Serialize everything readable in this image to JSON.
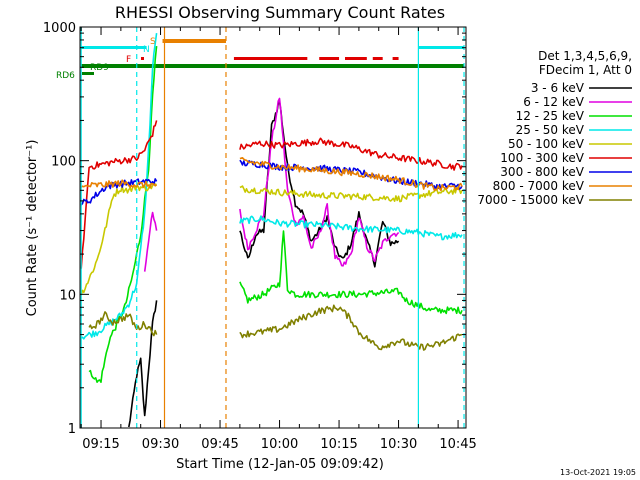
{
  "chart_data": {
    "type": "line",
    "title": "RHESSI Observing Summary Count Rates",
    "xlabel": "Start Time (12-Jan-05 09:09:42)",
    "ylabel": "Count Rate (s⁻¹ detector⁻¹)",
    "ylog": true,
    "ylim": [
      1,
      1000
    ],
    "xlim_minutes": [
      9.7,
      107
    ],
    "x_ticks": [
      {
        "t": 15,
        "label": "09:15"
      },
      {
        "t": 30,
        "label": "09:30"
      },
      {
        "t": 45,
        "label": "09:45"
      },
      {
        "t": 60,
        "label": "10:00"
      },
      {
        "t": 75,
        "label": "10:15"
      },
      {
        "t": 90,
        "label": "10:30"
      },
      {
        "t": 105,
        "label": "10:45"
      }
    ],
    "y_ticks": [
      {
        "v": 1,
        "label": "1"
      },
      {
        "v": 10,
        "label": "10"
      },
      {
        "v": 100,
        "label": "100"
      },
      {
        "v": 1000,
        "label": "1000"
      }
    ],
    "legend": {
      "placement": "right",
      "header": [
        "Det 1,3,4,5,6,9,",
        "FDecim 1, Att 0"
      ],
      "entries": [
        {
          "name": "3 - 6 keV",
          "color": "#000000"
        },
        {
          "name": "6 - 12 keV",
          "color": "#e000e0"
        },
        {
          "name": "12 - 25 keV",
          "color": "#00e000"
        },
        {
          "name": "25 - 50 keV",
          "color": "#00e8e8"
        },
        {
          "name": "50 - 100 keV",
          "color": "#c8c800"
        },
        {
          "name": "100 - 300 keV",
          "color": "#e00000"
        },
        {
          "name": "300 - 800 keV",
          "color": "#0000e8"
        },
        {
          "name": "800 - 7000 keV",
          "color": "#e88000"
        },
        {
          "name": "7000 - 15000 keV",
          "color": "#808000"
        }
      ]
    },
    "series": [
      {
        "name": "3 - 6 keV",
        "points": [
          [
            22,
            1.0
          ],
          [
            24,
            2.5
          ],
          [
            25,
            3.2
          ],
          [
            26,
            1.2
          ],
          [
            27,
            2.8
          ],
          [
            28,
            6
          ],
          [
            29,
            9
          ],
          [
            50,
            30
          ],
          [
            52,
            18
          ],
          [
            54,
            28
          ],
          [
            56,
            30
          ],
          [
            58,
            180
          ],
          [
            60,
            280
          ],
          [
            62,
            90
          ],
          [
            64,
            48
          ],
          [
            66,
            40
          ],
          [
            68,
            25
          ],
          [
            70,
            30
          ],
          [
            72,
            38
          ],
          [
            74,
            22
          ],
          [
            76,
            18
          ],
          [
            78,
            24
          ],
          [
            80,
            40
          ],
          [
            82,
            25
          ],
          [
            84,
            17
          ],
          [
            86,
            35
          ],
          [
            88,
            24
          ],
          [
            90,
            25
          ]
        ]
      },
      {
        "name": "6 - 12 keV",
        "points": [
          [
            26,
            15
          ],
          [
            27,
            26
          ],
          [
            28,
            40
          ],
          [
            29,
            30
          ],
          [
            50,
            42
          ],
          [
            52,
            22
          ],
          [
            54,
            30
          ],
          [
            56,
            40
          ],
          [
            58,
            140
          ],
          [
            60,
            300
          ],
          [
            62,
            60
          ],
          [
            64,
            34
          ],
          [
            66,
            38
          ],
          [
            68,
            22
          ],
          [
            70,
            28
          ],
          [
            72,
            45
          ],
          [
            74,
            19
          ],
          [
            76,
            16
          ],
          [
            78,
            20
          ],
          [
            80,
            38
          ],
          [
            82,
            23
          ],
          [
            84,
            18
          ],
          [
            86,
            24
          ],
          [
            88,
            28
          ],
          [
            90,
            29
          ]
        ]
      },
      {
        "name": "12 - 25 keV",
        "points": [
          [
            12,
            2.6
          ],
          [
            13,
            2.5
          ],
          [
            14,
            2.2
          ],
          [
            15,
            2.3
          ],
          [
            17,
            4.5
          ],
          [
            19,
            6
          ],
          [
            21,
            8
          ],
          [
            23,
            14
          ],
          [
            25,
            28
          ],
          [
            27,
            90
          ],
          [
            28,
            300
          ],
          [
            29,
            720
          ],
          [
            50,
            12
          ],
          [
            52,
            9
          ],
          [
            54,
            9.5
          ],
          [
            56,
            10
          ],
          [
            58,
            11
          ],
          [
            60,
            12
          ],
          [
            61,
            30
          ],
          [
            62,
            11
          ],
          [
            64,
            10
          ],
          [
            70,
            10
          ],
          [
            80,
            10
          ],
          [
            90,
            10.5
          ],
          [
            92,
            9
          ],
          [
            98,
            7.6
          ],
          [
            106,
            7.6
          ]
        ]
      },
      {
        "name": "25 - 50 keV",
        "points": [
          [
            10,
            4.8
          ],
          [
            12,
            5.0
          ],
          [
            14,
            5.2
          ],
          [
            17,
            6.0
          ],
          [
            20,
            7.0
          ],
          [
            22,
            8.5
          ],
          [
            24,
            12
          ],
          [
            26,
            40
          ],
          [
            27,
            120
          ],
          [
            28,
            500
          ],
          [
            29,
            900
          ],
          [
            50,
            35
          ],
          [
            55,
            37
          ],
          [
            60,
            34
          ],
          [
            70,
            33
          ],
          [
            80,
            31
          ],
          [
            90,
            30
          ],
          [
            95,
            29
          ],
          [
            100,
            27
          ],
          [
            106,
            28
          ]
        ]
      },
      {
        "name": "50 - 100 keV",
        "points": [
          [
            10,
            10
          ],
          [
            12,
            13
          ],
          [
            14,
            18
          ],
          [
            16,
            30
          ],
          [
            18,
            55
          ],
          [
            20,
            62
          ],
          [
            22,
            60
          ],
          [
            24,
            64
          ],
          [
            26,
            62
          ],
          [
            29,
            66
          ],
          [
            50,
            62
          ],
          [
            55,
            60
          ],
          [
            60,
            58
          ],
          [
            70,
            55
          ],
          [
            80,
            54
          ],
          [
            90,
            52
          ],
          [
            95,
            55
          ],
          [
            100,
            58
          ],
          [
            106,
            60
          ]
        ]
      },
      {
        "name": "100 - 300 keV",
        "points": [
          [
            10,
            15
          ],
          [
            12,
            90
          ],
          [
            16,
            95
          ],
          [
            18,
            98
          ],
          [
            20,
            100
          ],
          [
            22,
            102
          ],
          [
            24,
            104
          ],
          [
            26,
            120
          ],
          [
            28,
            160
          ],
          [
            29,
            200
          ],
          [
            50,
            125
          ],
          [
            55,
            135
          ],
          [
            60,
            130
          ],
          [
            70,
            140
          ],
          [
            78,
            128
          ],
          [
            85,
            110
          ],
          [
            90,
            105
          ],
          [
            95,
            100
          ],
          [
            100,
            95
          ],
          [
            104,
            90
          ],
          [
            106,
            92
          ]
        ]
      },
      {
        "name": "300 - 800 keV",
        "points": [
          [
            10,
            48
          ],
          [
            12,
            50
          ],
          [
            16,
            63
          ],
          [
            18,
            66
          ],
          [
            22,
            68
          ],
          [
            26,
            70
          ],
          [
            29,
            70
          ],
          [
            50,
            96
          ],
          [
            55,
            94
          ],
          [
            60,
            90
          ],
          [
            70,
            88
          ],
          [
            80,
            82
          ],
          [
            90,
            70
          ],
          [
            95,
            68
          ],
          [
            100,
            64
          ],
          [
            106,
            65
          ]
        ]
      },
      {
        "name": "800 - 7000 keV",
        "points": [
          [
            10,
            62
          ],
          [
            12,
            65
          ],
          [
            16,
            66
          ],
          [
            20,
            68
          ],
          [
            24,
            66
          ],
          [
            29,
            66
          ],
          [
            50,
            100
          ],
          [
            55,
            95
          ],
          [
            60,
            90
          ],
          [
            70,
            85
          ],
          [
            80,
            80
          ],
          [
            90,
            72
          ],
          [
            95,
            66
          ],
          [
            100,
            62
          ],
          [
            106,
            64
          ]
        ]
      },
      {
        "name": "7000 - 15000 keV",
        "points": [
          [
            12,
            5.5
          ],
          [
            14,
            6.0
          ],
          [
            16,
            7.0
          ],
          [
            18,
            6.2
          ],
          [
            20,
            6.5
          ],
          [
            22,
            7.0
          ],
          [
            24,
            5.5
          ],
          [
            26,
            6.0
          ],
          [
            29,
            5.0
          ],
          [
            50,
            5.0
          ],
          [
            55,
            5.2
          ],
          [
            60,
            5.5
          ],
          [
            65,
            6.5
          ],
          [
            70,
            7.5
          ],
          [
            75,
            8
          ],
          [
            78,
            6.5
          ],
          [
            80,
            5.2
          ],
          [
            85,
            4.0
          ],
          [
            90,
            4.5
          ],
          [
            95,
            4.0
          ],
          [
            100,
            4.2
          ],
          [
            106,
            5.0
          ]
        ]
      }
    ],
    "flag_labels": [
      {
        "label": "S",
        "color": "#e88000"
      },
      {
        "label": "N",
        "color": "#00e8e8"
      },
      {
        "label": "F",
        "color": "#e00000"
      },
      {
        "label": "RD9",
        "color": "#008000"
      },
      {
        "label": "RD6",
        "color": "#008000"
      }
    ],
    "footer_date": "13-Oct-2021 19:05"
  }
}
